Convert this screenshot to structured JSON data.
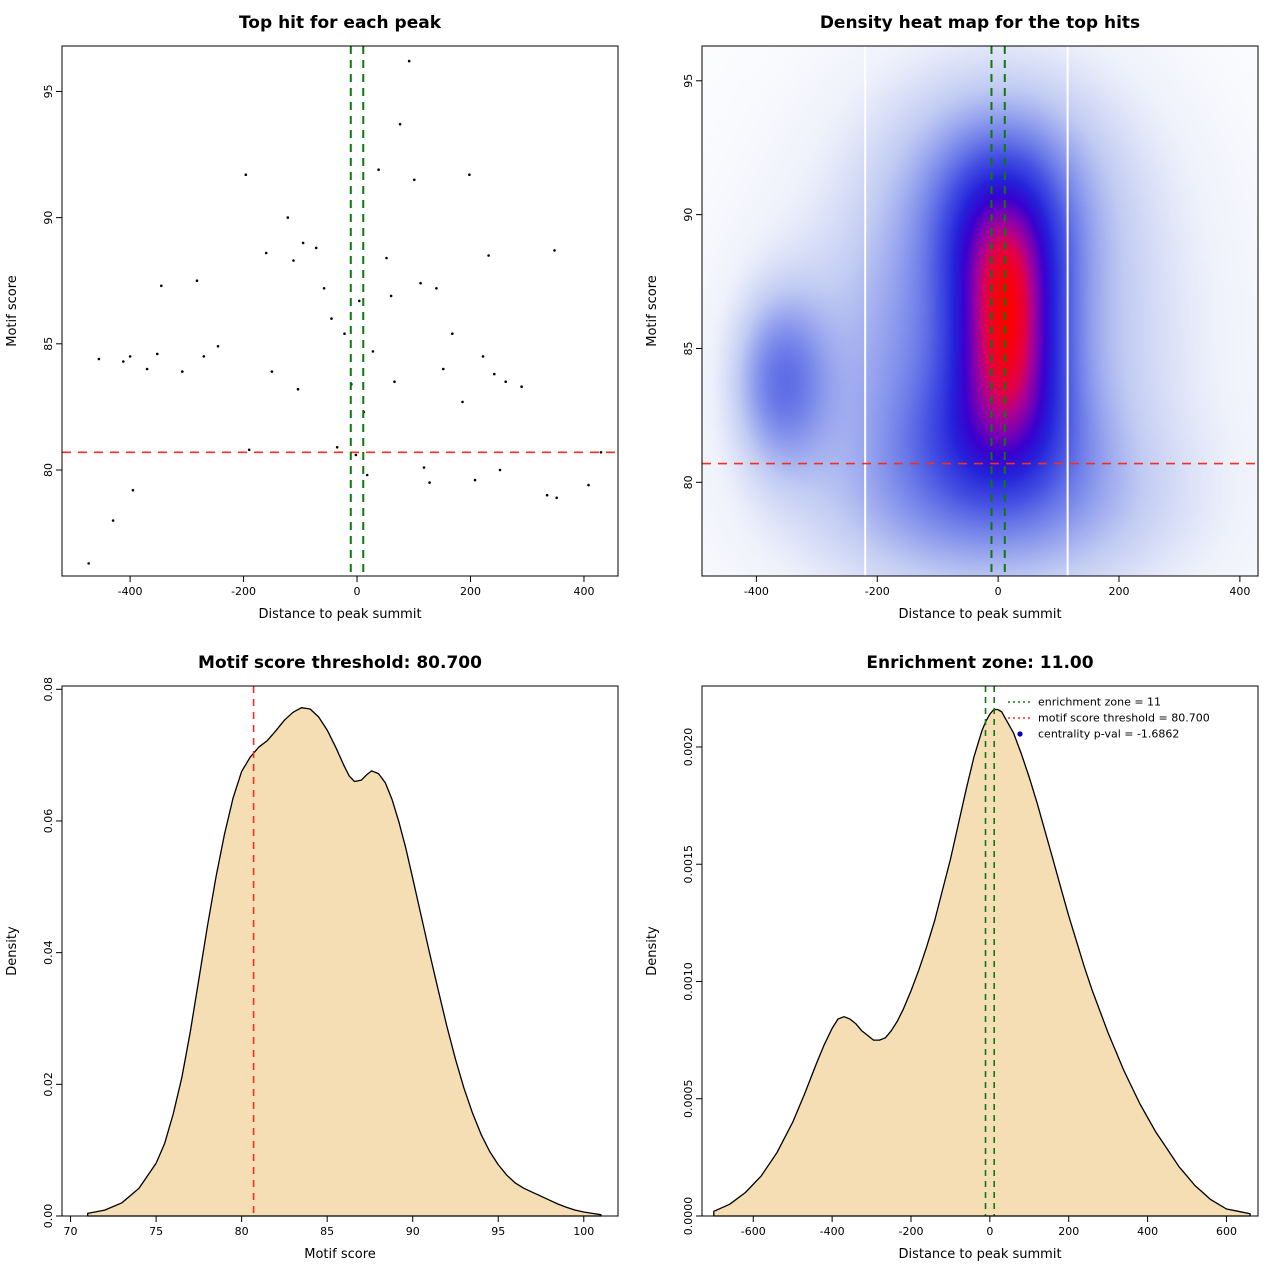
{
  "page": {
    "background": "#ffffff"
  },
  "colors": {
    "threshold_red": "#f03020",
    "zone_green": "#117711",
    "density_fill": "#f5deb3",
    "point_black": "#000000",
    "legend_point_blue": "#0000bb"
  },
  "chart_data": [
    {
      "type": "scatter",
      "title": "Top hit for each peak",
      "xlabel": "Distance to peak summit",
      "ylabel": "Motif score",
      "xlim": [
        -520,
        460
      ],
      "ylim": [
        75.8,
        96.8
      ],
      "xtick_vals": [
        -400,
        -200,
        0,
        200,
        400
      ],
      "xtick_labels": [
        "-400",
        "-200",
        "0",
        "200",
        "400"
      ],
      "ytick_vals": [
        80,
        85,
        90,
        95
      ],
      "ytick_labels": [
        "80",
        "85",
        "90",
        "95"
      ],
      "threshold_y": 80.7,
      "zone_x": [
        -11,
        11
      ],
      "points": [
        [
          -473,
          76.3
        ],
        [
          -455,
          84.4
        ],
        [
          -430,
          78.0
        ],
        [
          -412,
          84.3
        ],
        [
          -400,
          84.5
        ],
        [
          -395,
          79.2
        ],
        [
          -370,
          84.0
        ],
        [
          -352,
          84.6
        ],
        [
          -345,
          87.3
        ],
        [
          -308,
          83.9
        ],
        [
          -282,
          87.5
        ],
        [
          -270,
          84.5
        ],
        [
          -245,
          84.9
        ],
        [
          -196,
          91.7
        ],
        [
          -190,
          80.8
        ],
        [
          -160,
          88.6
        ],
        [
          -150,
          83.9
        ],
        [
          -122,
          90.0
        ],
        [
          -112,
          88.3
        ],
        [
          -104,
          83.2
        ],
        [
          -95,
          89.0
        ],
        [
          -72,
          88.8
        ],
        [
          -58,
          87.2
        ],
        [
          -45,
          86.0
        ],
        [
          -35,
          80.9
        ],
        [
          -22,
          85.4
        ],
        [
          -10,
          83.4
        ],
        [
          -2,
          80.6
        ],
        [
          4,
          86.7
        ],
        [
          12,
          82.3
        ],
        [
          18,
          79.8
        ],
        [
          28,
          84.7
        ],
        [
          38,
          91.9
        ],
        [
          52,
          88.4
        ],
        [
          60,
          86.9
        ],
        [
          66,
          83.5
        ],
        [
          76,
          93.7
        ],
        [
          92,
          96.2
        ],
        [
          101,
          91.5
        ],
        [
          112,
          87.4
        ],
        [
          118,
          80.1
        ],
        [
          128,
          79.5
        ],
        [
          140,
          87.2
        ],
        [
          152,
          84.0
        ],
        [
          168,
          85.4
        ],
        [
          186,
          82.7
        ],
        [
          198,
          91.7
        ],
        [
          208,
          79.6
        ],
        [
          222,
          84.5
        ],
        [
          232,
          88.5
        ],
        [
          242,
          83.8
        ],
        [
          252,
          80.0
        ],
        [
          262,
          83.5
        ],
        [
          290,
          83.3
        ],
        [
          335,
          79.0
        ],
        [
          348,
          88.7
        ],
        [
          352,
          78.9
        ],
        [
          408,
          79.4
        ],
        [
          430,
          80.7
        ]
      ]
    },
    {
      "type": "heatmap",
      "title": "Density heat map for the top hits",
      "xlabel": "Distance to peak summit",
      "ylabel": "Motif score",
      "xlim": [
        -490,
        430
      ],
      "ylim": [
        76.5,
        96.3
      ],
      "xtick_vals": [
        -400,
        -200,
        0,
        200,
        400
      ],
      "xtick_labels": [
        "-400",
        "-200",
        "0",
        "200",
        "400"
      ],
      "ytick_vals": [
        80,
        85,
        90,
        95
      ],
      "ytick_labels": [
        "80",
        "85",
        "90",
        "95"
      ],
      "threshold_y": 80.7,
      "zone_x": [
        -11,
        11
      ],
      "white_lines_x": [
        -220,
        115
      ],
      "gamma": 0.85,
      "kernels": [
        {
          "x": 15,
          "y": 87,
          "sx": 55,
          "sy": 2.2,
          "w": 1.0
        },
        {
          "x": 15,
          "y": 84,
          "sx": 60,
          "sy": 2.0,
          "w": 0.95
        },
        {
          "x": 5,
          "y": 89.5,
          "sx": 70,
          "sy": 2.2,
          "w": 0.75
        },
        {
          "x": 0,
          "y": 81.5,
          "sx": 90,
          "sy": 1.8,
          "w": 0.5
        },
        {
          "x": -360,
          "y": 83.8,
          "sx": 55,
          "sy": 2.3,
          "w": 0.65
        },
        {
          "x": 20,
          "y": 86,
          "sx": 170,
          "sy": 5,
          "w": 0.45
        },
        {
          "x": 0,
          "y": 92,
          "sx": 150,
          "sy": 3,
          "w": 0.3
        },
        {
          "x": -150,
          "y": 84,
          "sx": 150,
          "sy": 4,
          "w": 0.25
        },
        {
          "x": 0,
          "y": 79,
          "sx": 220,
          "sy": 2.5,
          "w": 0.4
        },
        {
          "x": 0,
          "y": 85,
          "sx": 320,
          "sy": 8,
          "w": 0.18
        }
      ],
      "colormap": [
        [
          0,
          "#ffffff"
        ],
        [
          0.1,
          "#eef1fb"
        ],
        [
          0.22,
          "#c2ccf3"
        ],
        [
          0.35,
          "#7e8deb"
        ],
        [
          0.48,
          "#4450e2"
        ],
        [
          0.6,
          "#2422da"
        ],
        [
          0.7,
          "#3a00cf"
        ],
        [
          0.78,
          "#7a00b4"
        ],
        [
          0.85,
          "#b00090"
        ],
        [
          0.91,
          "#e0004a"
        ],
        [
          1,
          "#ff0000"
        ]
      ]
    },
    {
      "type": "area",
      "title": "Motif score threshold: 80.700",
      "xlabel": "Motif score",
      "ylabel": "Density",
      "xlim": [
        69.5,
        102
      ],
      "ylim": [
        0,
        0.0805
      ],
      "xtick_vals": [
        70,
        75,
        80,
        85,
        90,
        95,
        100
      ],
      "xtick_labels": [
        "70",
        "75",
        "80",
        "85",
        "90",
        "95",
        "100"
      ],
      "ytick_vals": [
        0,
        0.02,
        0.04,
        0.06,
        0.08
      ],
      "ytick_labels": [
        "0.00",
        "0.02",
        "0.04",
        "0.06",
        "0.08"
      ],
      "threshold_x": 80.7,
      "curve": [
        [
          71,
          0.0004
        ],
        [
          72,
          0.0009
        ],
        [
          73,
          0.002
        ],
        [
          74,
          0.0042
        ],
        [
          75,
          0.008
        ],
        [
          75.5,
          0.011
        ],
        [
          76,
          0.0155
        ],
        [
          76.5,
          0.021
        ],
        [
          77,
          0.028
        ],
        [
          77.5,
          0.036
        ],
        [
          78,
          0.044
        ],
        [
          78.5,
          0.0515
        ],
        [
          79,
          0.058
        ],
        [
          79.5,
          0.0635
        ],
        [
          80,
          0.0675
        ],
        [
          80.5,
          0.0697
        ],
        [
          80.7,
          0.0703
        ],
        [
          81,
          0.0712
        ],
        [
          81.5,
          0.0722
        ],
        [
          82,
          0.0737
        ],
        [
          82.5,
          0.0753
        ],
        [
          83,
          0.0765
        ],
        [
          83.5,
          0.0772
        ],
        [
          84,
          0.077
        ],
        [
          84.5,
          0.0758
        ],
        [
          85,
          0.0738
        ],
        [
          85.5,
          0.0712
        ],
        [
          86,
          0.0683
        ],
        [
          86.3,
          0.0668
        ],
        [
          86.6,
          0.066
        ],
        [
          87,
          0.0662
        ],
        [
          87.3,
          0.067
        ],
        [
          87.6,
          0.0676
        ],
        [
          88,
          0.0672
        ],
        [
          88.4,
          0.0658
        ],
        [
          88.8,
          0.0632
        ],
        [
          89.2,
          0.0598
        ],
        [
          89.6,
          0.0558
        ],
        [
          90,
          0.0513
        ],
        [
          90.5,
          0.0455
        ],
        [
          91,
          0.0398
        ],
        [
          91.5,
          0.0342
        ],
        [
          92,
          0.0288
        ],
        [
          92.5,
          0.0238
        ],
        [
          93,
          0.0194
        ],
        [
          93.5,
          0.0156
        ],
        [
          94,
          0.0124
        ],
        [
          94.5,
          0.0098
        ],
        [
          95,
          0.0078
        ],
        [
          95.5,
          0.0062
        ],
        [
          96,
          0.005
        ],
        [
          96.5,
          0.0042
        ],
        [
          97,
          0.0036
        ],
        [
          97.5,
          0.003
        ],
        [
          98,
          0.0024
        ],
        [
          98.5,
          0.0018
        ],
        [
          99,
          0.0013
        ],
        [
          99.5,
          0.0009
        ],
        [
          100,
          0.0006
        ],
        [
          100.5,
          0.0004
        ],
        [
          101,
          0.0002
        ]
      ]
    },
    {
      "type": "area",
      "title": "Enrichment zone: 11.00",
      "xlabel": "Distance to peak summit",
      "ylabel": "Density",
      "xlim": [
        -730,
        680
      ],
      "ylim": [
        0,
        0.00226
      ],
      "xtick_vals": [
        -600,
        -400,
        -200,
        0,
        200,
        400,
        600
      ],
      "xtick_labels": [
        "-600",
        "-400",
        "-200",
        "0",
        "200",
        "400",
        "600"
      ],
      "ytick_vals": [
        0,
        0.0005,
        0.001,
        0.0015,
        0.002
      ],
      "ytick_labels": [
        "0.0000",
        "0.0005",
        "0.0010",
        "0.0015",
        "0.0020"
      ],
      "zone_x": [
        -11,
        11
      ],
      "legend": [
        {
          "label": "enrichment zone = 11",
          "marker": "dotted-line",
          "color": "#117711"
        },
        {
          "label": "motif score threshold = 80.700",
          "marker": "dotted-line",
          "color": "#f03020"
        },
        {
          "label": "centrality p-val = -1.6862",
          "marker": "point",
          "color": "#0000bb"
        }
      ],
      "curve": [
        [
          -700,
          2e-05
        ],
        [
          -660,
          5e-05
        ],
        [
          -620,
          0.0001
        ],
        [
          -580,
          0.00017
        ],
        [
          -540,
          0.00027
        ],
        [
          -500,
          0.0004
        ],
        [
          -470,
          0.00052
        ],
        [
          -440,
          0.00065
        ],
        [
          -420,
          0.00073
        ],
        [
          -400,
          0.0008
        ],
        [
          -385,
          0.00084
        ],
        [
          -370,
          0.00085
        ],
        [
          -355,
          0.00084
        ],
        [
          -340,
          0.00082
        ],
        [
          -325,
          0.00079
        ],
        [
          -310,
          0.00077
        ],
        [
          -295,
          0.00075
        ],
        [
          -280,
          0.00075
        ],
        [
          -265,
          0.00076
        ],
        [
          -250,
          0.00079
        ],
        [
          -235,
          0.00083
        ],
        [
          -220,
          0.00088
        ],
        [
          -200,
          0.00096
        ],
        [
          -180,
          0.00105
        ],
        [
          -160,
          0.00115
        ],
        [
          -140,
          0.00126
        ],
        [
          -120,
          0.00139
        ],
        [
          -100,
          0.00152
        ],
        [
          -80,
          0.00167
        ],
        [
          -60,
          0.00182
        ],
        [
          -40,
          0.00196
        ],
        [
          -20,
          0.00207
        ],
        [
          -10,
          0.00211
        ],
        [
          0,
          0.00214
        ],
        [
          10,
          0.00216
        ],
        [
          20,
          0.00216
        ],
        [
          30,
          0.00215
        ],
        [
          40,
          0.00212
        ],
        [
          60,
          0.00206
        ],
        [
          80,
          0.00197
        ],
        [
          100,
          0.00187
        ],
        [
          120,
          0.00176
        ],
        [
          140,
          0.00164
        ],
        [
          160,
          0.00152
        ],
        [
          180,
          0.0014
        ],
        [
          200,
          0.00128
        ],
        [
          220,
          0.00117
        ],
        [
          240,
          0.00106
        ],
        [
          260,
          0.00096
        ],
        [
          280,
          0.00087
        ],
        [
          300,
          0.00078
        ],
        [
          320,
          0.0007
        ],
        [
          340,
          0.00062
        ],
        [
          360,
          0.00055
        ],
        [
          380,
          0.00048
        ],
        [
          400,
          0.00042
        ],
        [
          420,
          0.00036
        ],
        [
          440,
          0.00031
        ],
        [
          460,
          0.00026
        ],
        [
          480,
          0.00021
        ],
        [
          500,
          0.00017
        ],
        [
          520,
          0.00013
        ],
        [
          540,
          0.0001
        ],
        [
          560,
          7e-05
        ],
        [
          580,
          5e-05
        ],
        [
          600,
          3e-05
        ],
        [
          630,
          2e-05
        ],
        [
          660,
          1e-05
        ]
      ]
    }
  ]
}
